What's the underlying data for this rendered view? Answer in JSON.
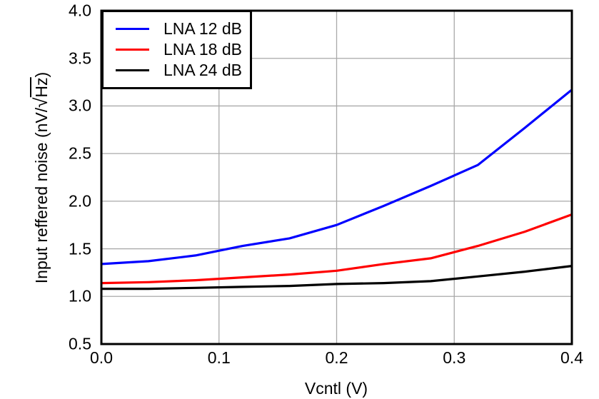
{
  "colors": {
    "background": "#ffffff",
    "frame": "#000000",
    "grid": "#a9a9a9",
    "text": "#000000"
  },
  "y_axis_title_parts": {
    "prefix": "Input reffered noise (nV/",
    "radical": "√",
    "radicand": "Hz",
    "suffix": ")"
  },
  "chart_data": {
    "type": "line",
    "title": "",
    "xlabel": "Vcntl (V)",
    "ylabel": "Input reffered noise (nV/√Hz)",
    "xlim": [
      0.0,
      0.4
    ],
    "ylim": [
      0.5,
      4.0
    ],
    "xticks": [
      0.0,
      0.1,
      0.2,
      0.3,
      0.4
    ],
    "yticks": [
      0.5,
      1.0,
      1.5,
      2.0,
      2.5,
      3.0,
      3.5,
      4.0
    ],
    "tick_decimals": 1,
    "grid": true,
    "legend_position": "top-left-inside",
    "x": [
      0.0,
      0.04,
      0.08,
      0.12,
      0.16,
      0.2,
      0.24,
      0.28,
      0.32,
      0.36,
      0.4
    ],
    "series": [
      {
        "name": "LNA 12 dB",
        "color": "#0000ff",
        "values": [
          1.34,
          1.37,
          1.43,
          1.53,
          1.61,
          1.75,
          1.95,
          2.16,
          2.38,
          2.77,
          3.17
        ]
      },
      {
        "name": "LNA 18 dB",
        "color": "#ff0000",
        "values": [
          1.14,
          1.15,
          1.17,
          1.2,
          1.23,
          1.27,
          1.34,
          1.4,
          1.53,
          1.68,
          1.86
        ]
      },
      {
        "name": "LNA 24 dB",
        "color": "#000000",
        "values": [
          1.08,
          1.08,
          1.09,
          1.1,
          1.11,
          1.13,
          1.14,
          1.16,
          1.21,
          1.26,
          1.32
        ]
      }
    ]
  }
}
